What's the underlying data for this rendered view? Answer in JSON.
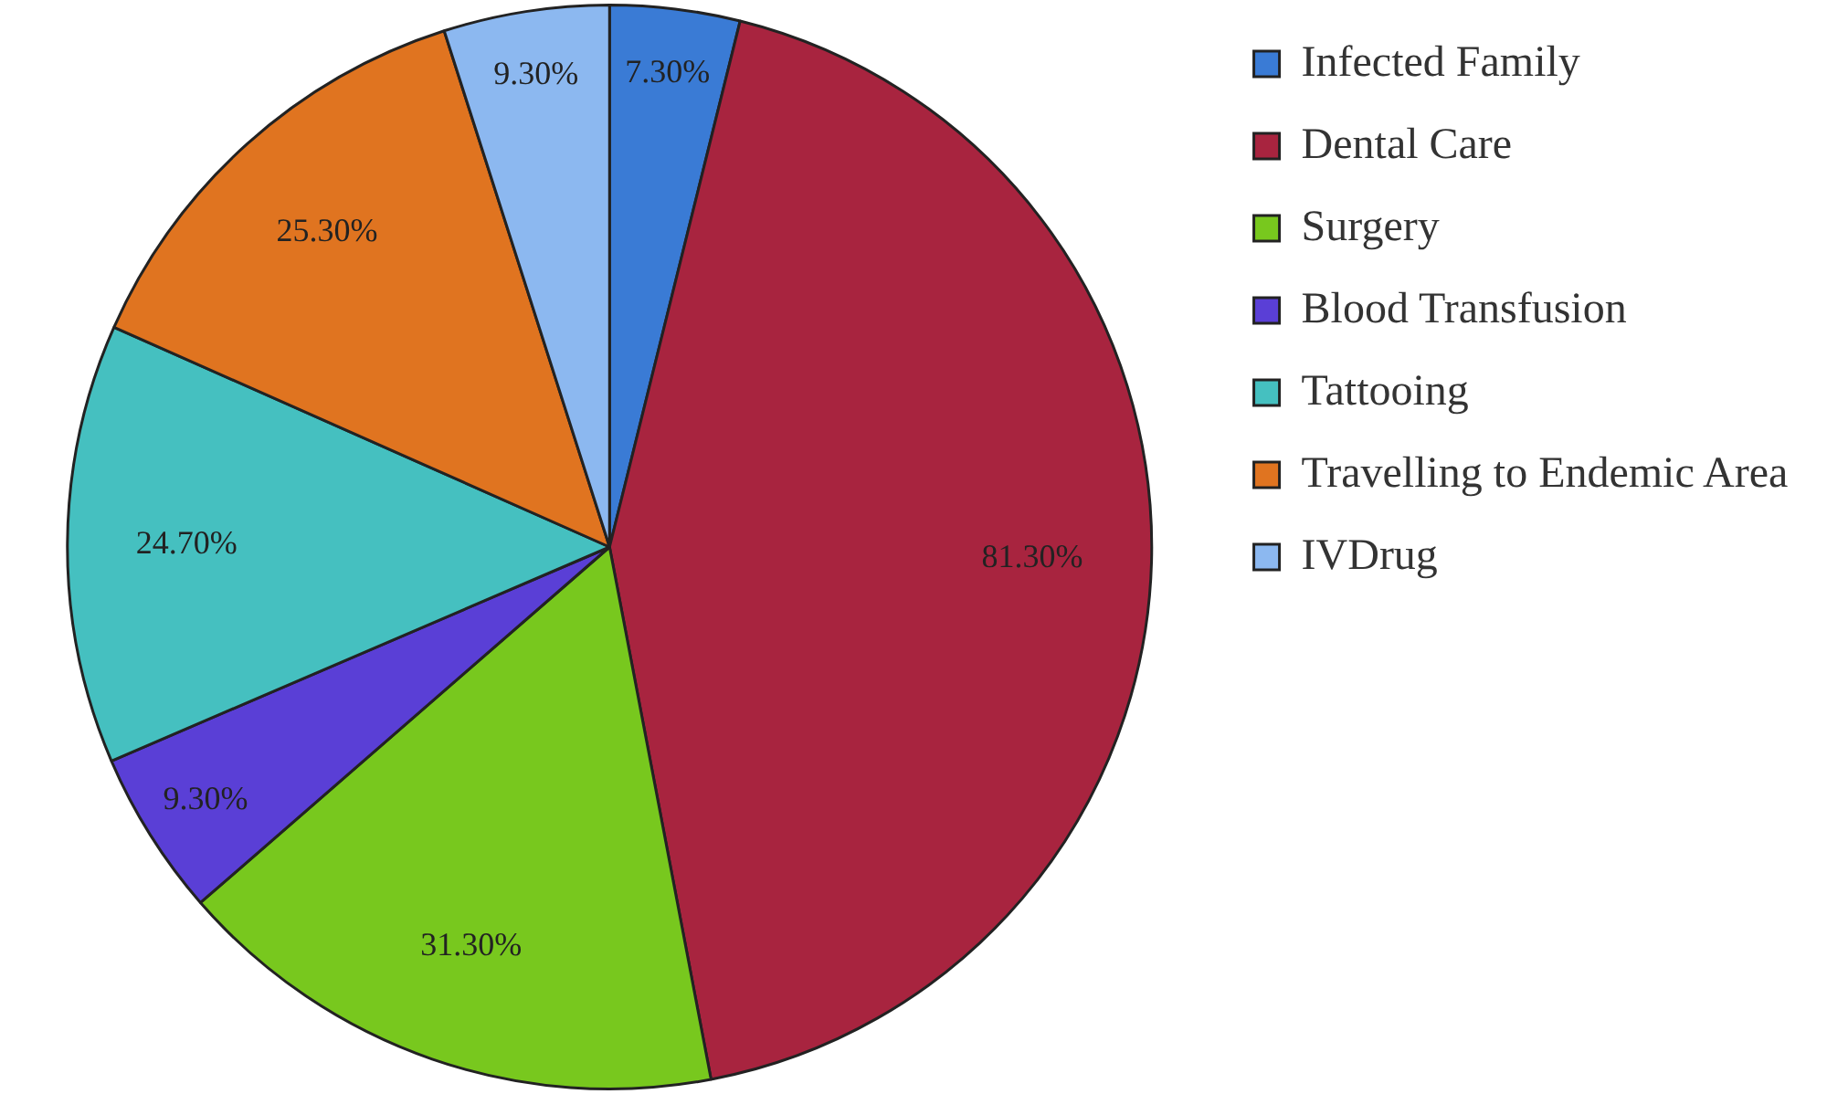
{
  "chart_data": {
    "type": "pie",
    "categories": [
      "Infected Family",
      "Dental Care",
      "Surgery",
      "Blood Transfusion",
      "Tattooing",
      "Travelling to Endemic Area",
      "IVDrug"
    ],
    "values": [
      7.3,
      81.3,
      31.3,
      9.3,
      24.7,
      25.3,
      9.3
    ],
    "value_labels": [
      "7.30%",
      "81.30%",
      "31.30%",
      "9.30%",
      "24.70%",
      "25.30%",
      "9.30%"
    ],
    "colors": [
      "#3a7bd5",
      "#a8243f",
      "#78c81e",
      "#5a3fd6",
      "#45c0c0",
      "#e07420",
      "#8cb8f0"
    ],
    "legend": "right"
  }
}
